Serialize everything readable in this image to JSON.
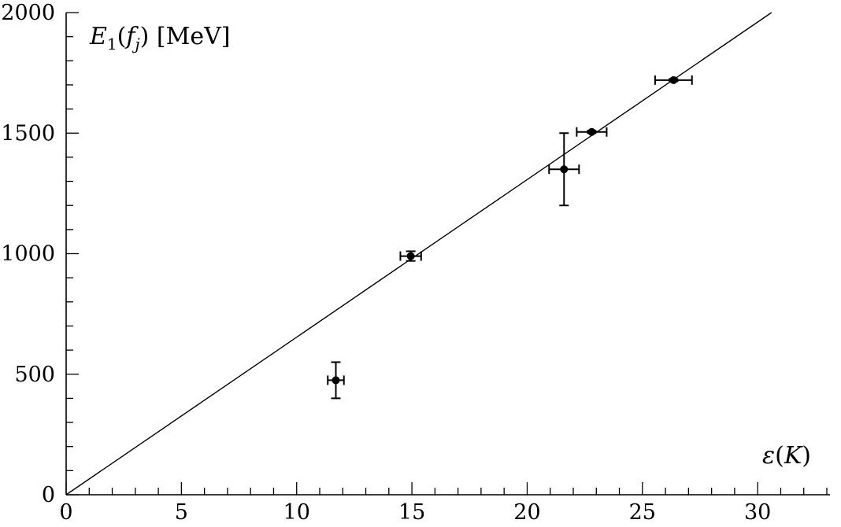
{
  "chart_data": {
    "type": "scatter",
    "title": "",
    "xlabel": "ε(K)",
    "ylabel": "E₁(f_j) [MeV]",
    "ylabel_parts": {
      "main": "E",
      "sub1": "1",
      "open": "(",
      "f": "f",
      "subj": "j",
      "close": ")",
      "unit": " [MeV]"
    },
    "xlabel_parts": {
      "eps": "ε",
      "open": "(",
      "k": "K",
      "close": ")"
    },
    "xlim": [
      0,
      33
    ],
    "ylim": [
      0,
      2000
    ],
    "x_ticks": [
      0,
      5,
      10,
      15,
      20,
      25,
      30
    ],
    "y_ticks": [
      0,
      500,
      1000,
      1500,
      2000
    ],
    "x_minor_step": 1,
    "y_minor_step": 100,
    "grid": false,
    "points": [
      {
        "x": 11.7,
        "y": 475,
        "xerr": 0.35,
        "yerr": 75
      },
      {
        "x": 14.95,
        "y": 990,
        "xerr": 0.45,
        "yerr": 20
      },
      {
        "x": 21.6,
        "y": 1350,
        "xerr": 0.65,
        "yerr": 150
      },
      {
        "x": 22.8,
        "y": 1505,
        "xerr": 0.65,
        "yerr": 5
      },
      {
        "x": 26.35,
        "y": 1720,
        "xerr": 0.8,
        "yerr": 5
      }
    ],
    "fit_line": {
      "x": [
        0,
        30.6
      ],
      "y": [
        0,
        2000
      ]
    }
  }
}
